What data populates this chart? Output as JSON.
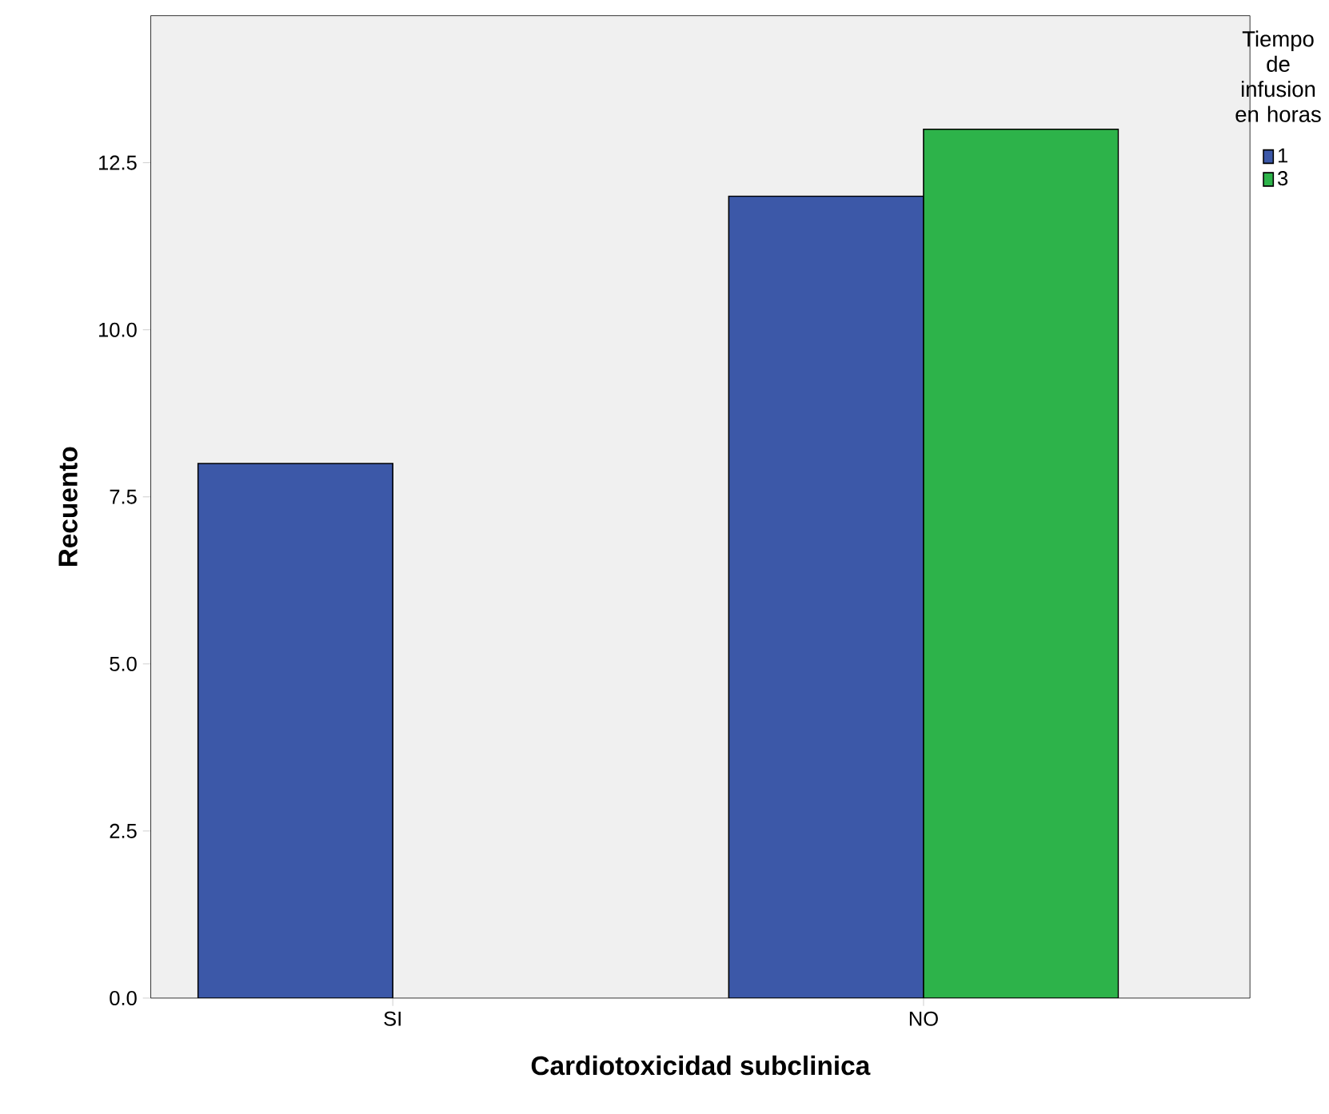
{
  "chart_data": {
    "type": "bar",
    "xlabel": "Cardiotoxicidad subclinica",
    "ylabel": "Recuento",
    "legend_title": "Tiempo de infusion en horas",
    "categories": [
      "SI",
      "NO"
    ],
    "series": [
      {
        "name": "1",
        "color": "#3c58a8",
        "values": [
          8,
          12
        ]
      },
      {
        "name": "3",
        "color": "#2db34a",
        "values": [
          null,
          13
        ]
      }
    ],
    "ylim": [
      0,
      14.7
    ],
    "yticks": [
      {
        "value": 0,
        "label": "0.0"
      },
      {
        "value": 2.5,
        "label": "2.5"
      },
      {
        "value": 5,
        "label": "5.0"
      },
      {
        "value": 7.5,
        "label": "7.5"
      },
      {
        "value": 10,
        "label": "10.0"
      },
      {
        "value": 12.5,
        "label": "12.5"
      }
    ],
    "grid": false,
    "legend": "top right"
  }
}
